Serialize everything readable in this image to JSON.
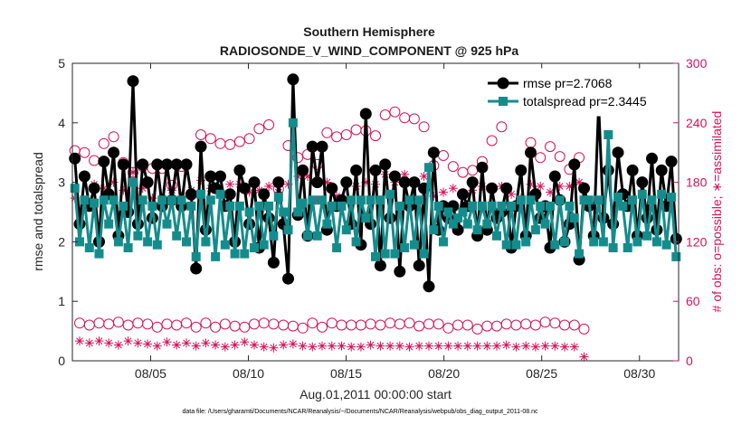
{
  "chart_data": {
    "type": "line",
    "title": "Southern Hemisphere",
    "subtitle": "RADIOSONDE_V_WIND_COMPONENT @ 925 hPa",
    "xlabel": "Aug.01,2011 00:00:00 start",
    "ylabel_left": "rmse and totalspread",
    "ylabel_right": "# of obs: o=possible; ∗=assimilated",
    "x_tick_labels": [
      "08/05",
      "08/10",
      "08/15",
      "08/20",
      "08/25",
      "08/30"
    ],
    "x_ticks_day": [
      5,
      10,
      15,
      20,
      25,
      30
    ],
    "xlim_day": [
      1,
      32
    ],
    "ylim_left": [
      0,
      5
    ],
    "y_ticks_left": [
      "0",
      "1",
      "2",
      "3",
      "4",
      "5"
    ],
    "ylim_right": [
      0,
      300
    ],
    "y_ticks_right": [
      "0",
      "60",
      "120",
      "180",
      "240",
      "300"
    ],
    "legend_position": "top-right",
    "footer": "data file: /Users/gharamti/Documents/NCAR/Reanalysis/~/Documents/NCAR/Reanalysis/webpub/obs_diag_output_2011-08.nc",
    "colors": {
      "rmse": "#000000",
      "spread": "#158c8c",
      "obs": "#d4145a"
    },
    "series": [
      {
        "name": "rmse pr=2.7068",
        "axis": "left",
        "values": [
          3.4,
          2.3,
          3.1,
          2.6,
          2.9,
          2.0,
          3.35,
          2.8,
          3.5,
          2.1,
          3.3,
          2.5,
          4.7,
          2.3,
          3.3,
          3.0,
          2.4,
          3.3,
          2.6,
          3.3,
          2.7,
          3.3,
          2.6,
          3.3,
          2.8,
          1.55,
          3.6,
          2.2,
          3.1,
          2.9,
          3.1,
          2.6,
          2.8,
          2.0,
          3.2,
          2.9,
          2.3,
          3.0,
          1.9,
          2.8,
          2.4,
          1.65,
          3.0,
          2.3,
          1.38,
          4.73,
          2.45,
          3.2,
          2.1,
          3.6,
          3.0,
          3.6,
          2.2,
          2.9,
          2.6,
          2.7,
          3.0,
          2.3,
          3.2,
          1.95,
          4.15,
          2.3,
          3.2,
          1.6,
          3.3,
          2.4,
          3.1,
          1.5,
          3.0,
          2.6,
          3.0,
          1.6,
          2.9,
          1.25,
          3.5,
          2.2,
          2.6,
          2.4,
          2.6,
          2.2,
          2.8,
          2.6,
          3.0,
          2.1,
          3.25,
          2.2,
          2.9,
          2.4,
          2.5,
          2.9,
          1.9,
          2.6,
          3.2,
          2.1,
          3.5,
          2.8,
          2.4,
          2.6,
          1.9,
          3.1,
          2.7,
          2.0,
          2.3,
          3.3,
          1.7,
          2.9,
          2.6,
          2.1,
          4.3,
          2.4,
          3.2,
          2.3,
          3.5,
          2.8,
          2.6,
          3.2,
          2.1,
          3.0,
          2.4,
          3.4,
          2.2,
          3.2,
          2.6,
          3.35,
          2.05
        ]
      },
      {
        "name": "totalspread pr=2.3445",
        "axis": "left",
        "values": [
          2.9,
          2.0,
          2.7,
          1.9,
          2.65,
          1.8,
          2.7,
          2.3,
          2.7,
          2.0,
          2.6,
          1.9,
          3.0,
          2.1,
          2.7,
          2.0,
          2.6,
          1.95,
          2.7,
          2.3,
          2.7,
          2.1,
          2.7,
          2.0,
          2.6,
          1.75,
          2.8,
          2.0,
          2.7,
          1.75,
          2.8,
          1.95,
          2.6,
          1.8,
          2.6,
          1.8,
          2.5,
          1.9,
          2.6,
          1.95,
          2.6,
          2.1,
          2.75,
          2.5,
          2.2,
          4.0,
          2.5,
          2.65,
          2.1,
          2.7,
          2.1,
          2.7,
          2.3,
          2.6,
          1.9,
          2.6,
          2.2,
          2.7,
          2.0,
          2.7,
          2.4,
          2.7,
          1.75,
          2.7,
          1.8,
          2.8,
          1.8,
          2.6,
          1.9,
          2.7,
          1.95,
          2.7,
          1.8,
          3.25,
          2.2,
          2.6,
          2.0,
          2.5,
          2.3,
          2.4,
          2.5,
          2.3,
          2.6,
          2.2,
          2.6,
          2.3,
          2.6,
          2.1,
          2.6,
          1.95,
          2.6,
          1.95,
          2.7,
          2.0,
          2.7,
          2.2,
          2.6,
          2.3,
          2.6,
          1.95,
          2.7,
          2.0,
          2.6,
          2.4,
          1.8,
          2.7,
          2.7,
          2.0,
          2.7,
          2.0,
          3.8,
          1.9,
          2.75,
          2.6,
          1.9,
          2.7,
          2.0,
          2.8,
          2.1,
          2.7,
          2.0,
          2.8,
          1.95,
          2.75,
          1.75
        ]
      },
      {
        "name": "possible",
        "axis": "right",
        "values": [
          212,
          38,
          210,
          36,
          202,
          38,
          219,
          37,
          226,
          39,
          200,
          36,
          190,
          38,
          196,
          37,
          194,
          34,
          194,
          37,
          177,
          36,
          196,
          38,
          167,
          34,
          228,
          38,
          224,
          34,
          219,
          37,
          218,
          35,
          221,
          34,
          224,
          37,
          234,
          38,
          238,
          37,
          173,
          36,
          217,
          35,
          205,
          33,
          208,
          38,
          198,
          34,
          230,
          38,
          226,
          36,
          228,
          36,
          233,
          36,
          232,
          37,
          227,
          36,
          248,
          38,
          251,
          37,
          245,
          38,
          244,
          35,
          236,
          37,
          197,
          37,
          207,
          33,
          196,
          36,
          190,
          36,
          192,
          32,
          201,
          35,
          222,
          35,
          236,
          37,
          254,
          36,
          255,
          37,
          220,
          36,
          205,
          39,
          216,
          38,
          206,
          36,
          193,
          36,
          205,
          32
        ]
      },
      {
        "name": "assimilated",
        "axis": "right",
        "values": [
          164,
          20,
          184,
          18,
          178,
          20,
          174,
          18,
          180,
          16,
          172,
          20,
          190,
          18,
          174,
          17,
          164,
          15,
          164,
          19,
          172,
          16,
          166,
          18,
          172,
          15,
          182,
          18,
          174,
          16,
          172,
          14,
          178,
          16,
          178,
          19,
          170,
          16,
          172,
          14,
          176,
          13,
          170,
          16,
          178,
          17,
          186,
          15,
          186,
          14,
          162,
          15,
          180,
          15,
          166,
          15,
          178,
          14,
          176,
          14,
          180,
          16,
          178,
          15,
          188,
          15,
          180,
          15,
          188,
          14,
          180,
          15,
          186,
          15,
          166,
          15,
          170,
          15,
          174,
          15,
          168,
          15,
          172,
          15,
          176,
          15,
          174,
          15,
          176,
          16,
          168,
          14,
          164,
          15,
          178,
          14,
          176,
          15,
          170,
          15,
          176,
          14,
          176,
          14,
          180,
          4
        ]
      }
    ]
  }
}
